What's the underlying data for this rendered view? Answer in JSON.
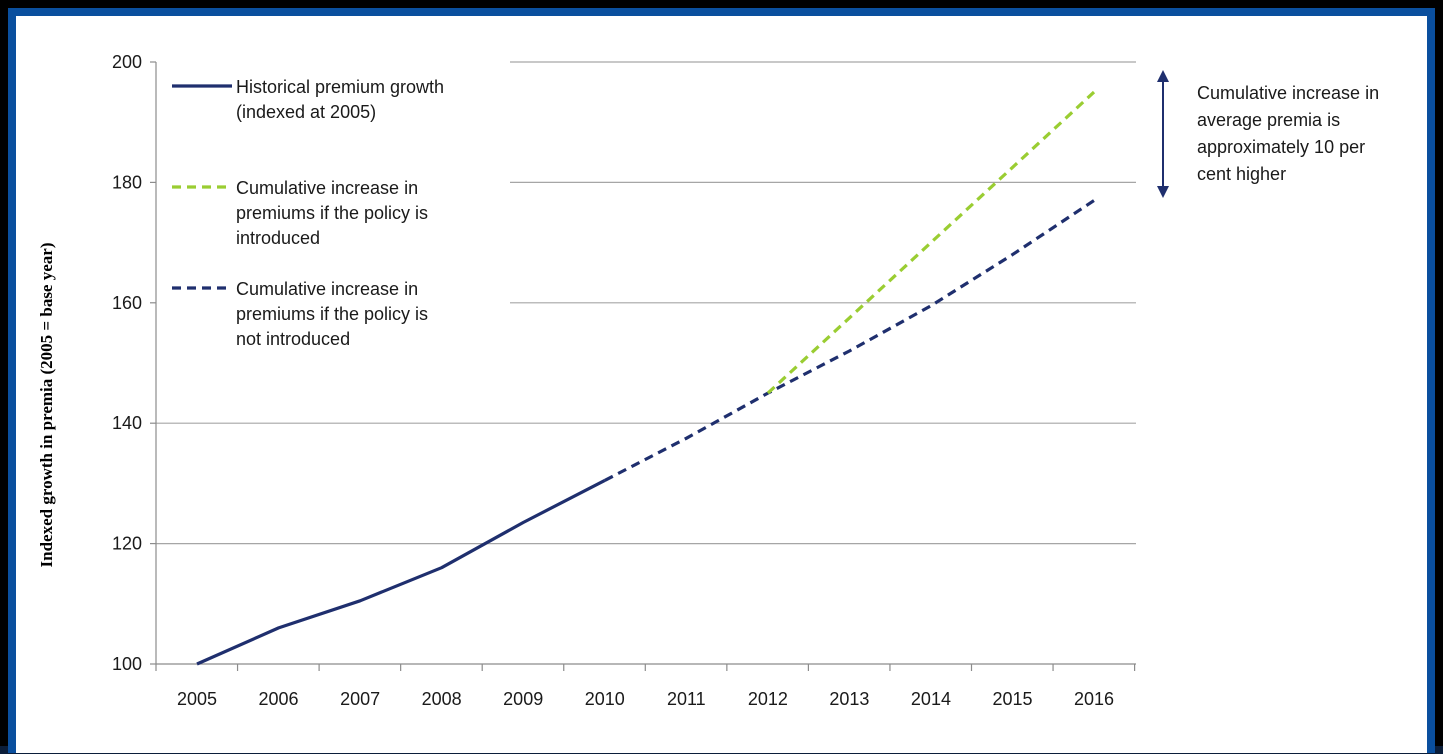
{
  "chart_data": {
    "type": "line",
    "title": "",
    "xlabel": "",
    "ylabel": "Indexed growth in premia (2005 = base year)",
    "x": [
      "2005",
      "2006",
      "2007",
      "2008",
      "2009",
      "2010",
      "2011",
      "2012",
      "2013",
      "2014",
      "2015",
      "2016"
    ],
    "ylim": [
      100,
      200
    ],
    "yticks": [
      "100",
      "120",
      "140",
      "160",
      "180",
      "200"
    ],
    "grid": "horizontal",
    "legend_position": "top-left",
    "series": [
      {
        "name": "Historical premium growth (indexed at 2005)",
        "legend_lines": [
          "Historical premium growth",
          "(indexed at 2005)"
        ],
        "style": "solid",
        "color": "#1f2f6e",
        "x": [
          "2005",
          "2006",
          "2007",
          "2008",
          "2009",
          "2010"
        ],
        "values": [
          100,
          106,
          110.5,
          116,
          123.5,
          130.5
        ]
      },
      {
        "name": "Cumulative increase in premiums if the policy is introduced",
        "legend_lines": [
          "Cumulative increase in",
          "premiums if the policy is",
          "introduced"
        ],
        "style": "dashed",
        "color": "#9acd32",
        "x": [
          "2012",
          "2013",
          "2014",
          "2015",
          "2016"
        ],
        "values": [
          145,
          157.5,
          170,
          182.5,
          195
        ]
      },
      {
        "name": "Cumulative increase in premiums if the policy is not introduced",
        "legend_lines": [
          "Cumulative increase in",
          "premiums if the policy is",
          "not introduced"
        ],
        "style": "dashed",
        "color": "#1f2f6e",
        "x": [
          "2010",
          "2011",
          "2012",
          "2013",
          "2014",
          "2015",
          "2016"
        ],
        "values": [
          130.5,
          137.5,
          145,
          152,
          159.5,
          168,
          177
        ]
      }
    ],
    "annotation": {
      "lines": [
        "Cumulative increase  in",
        "average premia is",
        "approximately 10 per",
        "cent higher"
      ],
      "arrow_range": [
        177,
        195
      ]
    }
  },
  "colors": {
    "border": "#0a4f9e",
    "historical": "#1f2f6e",
    "introduced": "#9acd32",
    "grid": "#a6a6a6"
  }
}
